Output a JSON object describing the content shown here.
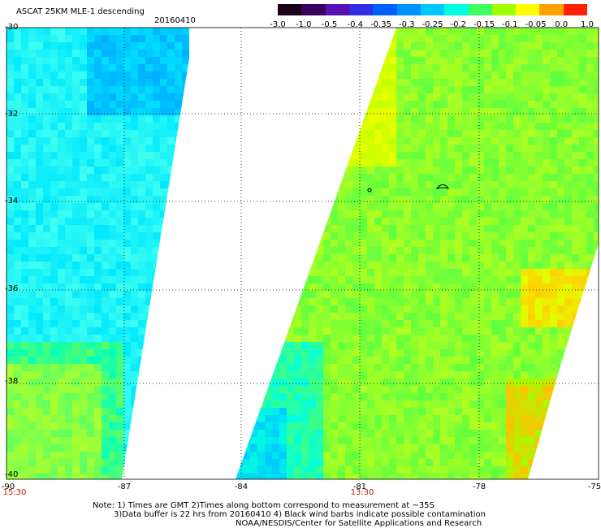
{
  "header": {
    "title": "ASCAT 25KM MLE-1 descending",
    "date": "20160410"
  },
  "colorbar": {
    "ticks": [
      "-3.0",
      "-1.0",
      "-0.5",
      "-0.4",
      "-0.35",
      "-0.3",
      "-0.25",
      "-0.2",
      "-0.15",
      "-0.1",
      "-0.05",
      "0.0",
      "1.0"
    ],
    "colors": [
      "#1a001a",
      "#3a0060",
      "#5a10b0",
      "#3030e0",
      "#0060ff",
      "#0090ff",
      "#00c8ff",
      "#00ffe0",
      "#40ff60",
      "#a0ff00",
      "#ffff00",
      "#ffa000",
      "#ff2000"
    ]
  },
  "map": {
    "lat_labels": [
      "-30",
      "-32",
      "-34",
      "-36",
      "-38",
      "-40"
    ],
    "lon_labels": [
      "-90",
      "-87",
      "-84",
      "-81",
      "-78",
      "-75"
    ],
    "time_labels": [
      "15:30",
      "13:30"
    ]
  },
  "notes": [
    "Note: 1) Times are GMT 2)Times along bottom correspond to measurement at ~35S",
    "3)Data buffer is 22 hrs from 20160410 4) Black wind barbs indicate possible contamination",
    "NOAA/NESDIS/Center for Satellite Applications and Research"
  ]
}
